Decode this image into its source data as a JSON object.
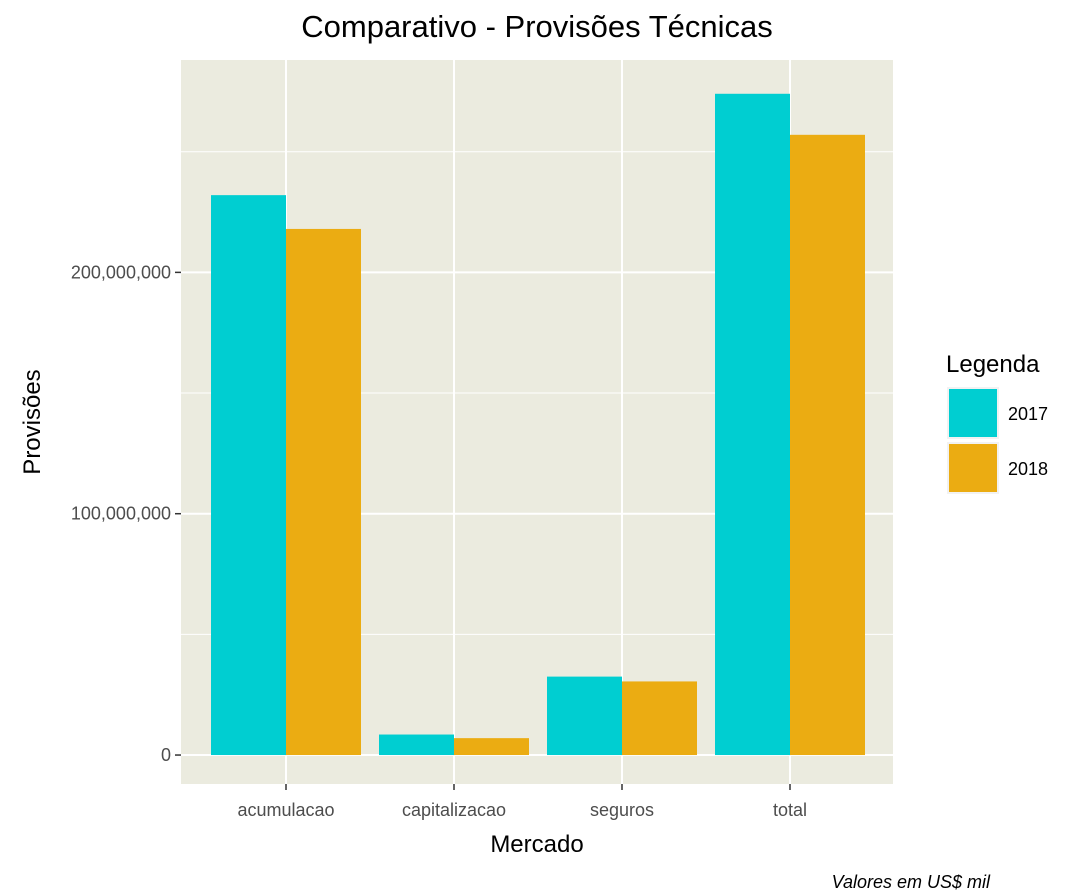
{
  "chart_data": {
    "type": "bar",
    "title": "Comparativo - Provisões Técnicas",
    "xlabel": "Mercado",
    "ylabel": "Provisões",
    "caption": "Valores em US$ mil",
    "categories": [
      "acumulacao",
      "capitalizacao",
      "seguros",
      "total"
    ],
    "series": [
      {
        "name": "2017",
        "color": "#00CED1",
        "values": [
          232000000,
          8500000,
          32500000,
          274000000
        ]
      },
      {
        "name": "2018",
        "color": "#EBAC12",
        "values": [
          218000000,
          7000000,
          30500000,
          257000000
        ]
      }
    ],
    "ylim": [
      -12000000,
      288000000
    ],
    "yticks": [
      0,
      100000000,
      200000000
    ],
    "ytick_labels": [
      "0",
      "100,000,000",
      "200,000,000"
    ],
    "legend": {
      "title": "Legenda",
      "position": "right"
    },
    "grid": true,
    "panel_background": "#EBEBDF"
  }
}
